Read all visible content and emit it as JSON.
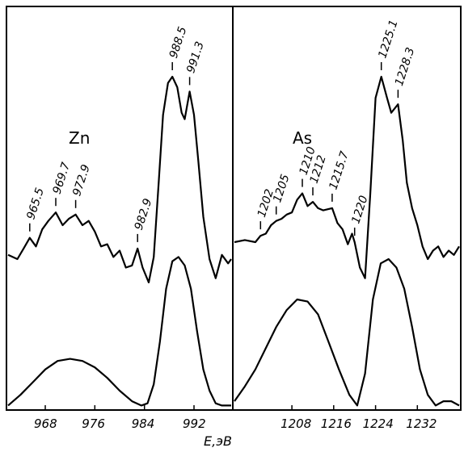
{
  "chart_data": [
    {
      "type": "line",
      "panel_label": "Zn",
      "xlabel": "E,эВ",
      "xlim": [
        962,
        998
      ],
      "x_ticks": [
        "968",
        "976",
        "984",
        "992"
      ],
      "x_tick_values": [
        968,
        976,
        984,
        992
      ],
      "peak_labels": [
        {
          "text": "965.5",
          "x": 965.5
        },
        {
          "text": "969.7",
          "x": 969.7
        },
        {
          "text": "972.9",
          "x": 972.9
        },
        {
          "text": "982.9",
          "x": 982.9
        },
        {
          "text": "988.5",
          "x": 988.5
        },
        {
          "text": "991.3",
          "x": 991.3
        }
      ],
      "series": [
        {
          "x": [
            962,
            963.5,
            964.5,
            965.5,
            966.5,
            967.5,
            968.5,
            969.7,
            970.8,
            971.8,
            972.9,
            974,
            975,
            976,
            977,
            978,
            979,
            980,
            981,
            982,
            982.9,
            983.7,
            984.7,
            985.5,
            986.3,
            987,
            987.8,
            988.5,
            989.3,
            990,
            990.5,
            991.3,
            992,
            992.7,
            993.5,
            994.5,
            995.5,
            996.5,
            997.5,
            998
          ],
          "y": [
            0.16,
            0.14,
            0.19,
            0.24,
            0.2,
            0.28,
            0.32,
            0.36,
            0.3,
            0.33,
            0.35,
            0.3,
            0.32,
            0.27,
            0.2,
            0.21,
            0.15,
            0.18,
            0.1,
            0.11,
            0.19,
            0.1,
            0.03,
            0.15,
            0.5,
            0.82,
            0.97,
            1.0,
            0.95,
            0.83,
            0.8,
            0.93,
            0.82,
            0.6,
            0.34,
            0.14,
            0.05,
            0.16,
            0.12,
            0.14
          ]
        },
        {
          "x": [
            962,
            964,
            966,
            968,
            970,
            972,
            974,
            976,
            978,
            980,
            982,
            983.5,
            984.5,
            985.5,
            986.5,
            987.5,
            988.5,
            989.5,
            990.5,
            991.5,
            992.5,
            993.5,
            994.5,
            995.5,
            996.5,
            998
          ],
          "y": [
            -0.55,
            -0.5,
            -0.44,
            -0.38,
            -0.34,
            -0.33,
            -0.34,
            -0.37,
            -0.42,
            -0.48,
            -0.53,
            -0.55,
            -0.54,
            -0.45,
            -0.25,
            0.0,
            0.13,
            0.15,
            0.11,
            0.0,
            -0.2,
            -0.38,
            -0.48,
            -0.54,
            -0.55,
            -0.55
          ]
        }
      ]
    },
    {
      "type": "line",
      "panel_label": "As",
      "xlabel": "E,эВ",
      "xlim": [
        1197,
        1240
      ],
      "x_ticks": [
        "1208",
        "1216",
        "1224",
        "1232"
      ],
      "x_tick_values": [
        1208,
        1216,
        1224,
        1232
      ],
      "peak_labels": [
        {
          "text": "1202",
          "x": 1202
        },
        {
          "text": "1205",
          "x": 1205
        },
        {
          "text": "1210",
          "x": 1210
        },
        {
          "text": "1212",
          "x": 1212
        },
        {
          "text": "1215.7",
          "x": 1215.7
        },
        {
          "text": "1220",
          "x": 1220
        },
        {
          "text": "1225.1",
          "x": 1225.1
        },
        {
          "text": "1228.3",
          "x": 1228.3
        }
      ],
      "series": [
        {
          "x": [
            1197,
            1199,
            1201,
            1202,
            1203,
            1204,
            1205,
            1206,
            1207,
            1208,
            1209,
            1210,
            1211,
            1212,
            1213,
            1214,
            1215.7,
            1216.7,
            1217.7,
            1218.7,
            1219.5,
            1220,
            1221,
            1222,
            1223,
            1224,
            1225.1,
            1226.2,
            1227,
            1228.3,
            1229.2,
            1230,
            1231,
            1232,
            1233,
            1234,
            1235,
            1236,
            1237,
            1238,
            1239,
            1240
          ],
          "y": [
            0.22,
            0.23,
            0.22,
            0.25,
            0.26,
            0.3,
            0.32,
            0.33,
            0.35,
            0.36,
            0.42,
            0.45,
            0.39,
            0.41,
            0.38,
            0.37,
            0.38,
            0.31,
            0.28,
            0.21,
            0.26,
            0.22,
            0.1,
            0.05,
            0.45,
            0.9,
            1.0,
            0.9,
            0.83,
            0.87,
            0.7,
            0.5,
            0.38,
            0.3,
            0.2,
            0.14,
            0.18,
            0.2,
            0.15,
            0.18,
            0.16,
            0.2
          ]
        },
        {
          "x": [
            1197,
            1199,
            1201,
            1203,
            1205,
            1207,
            1209,
            1211,
            1213,
            1215,
            1217,
            1219,
            1220.5,
            1222,
            1223.5,
            1225,
            1226.5,
            1228,
            1229.5,
            1231,
            1232.5,
            1234,
            1235.5,
            1237,
            1238.5,
            1240
          ],
          "y": [
            -0.53,
            -0.46,
            -0.38,
            -0.28,
            -0.18,
            -0.1,
            -0.05,
            -0.06,
            -0.12,
            -0.25,
            -0.38,
            -0.5,
            -0.55,
            -0.4,
            -0.05,
            0.12,
            0.14,
            0.1,
            0.0,
            -0.18,
            -0.38,
            -0.5,
            -0.55,
            -0.53,
            -0.53,
            -0.55
          ]
        }
      ]
    }
  ]
}
